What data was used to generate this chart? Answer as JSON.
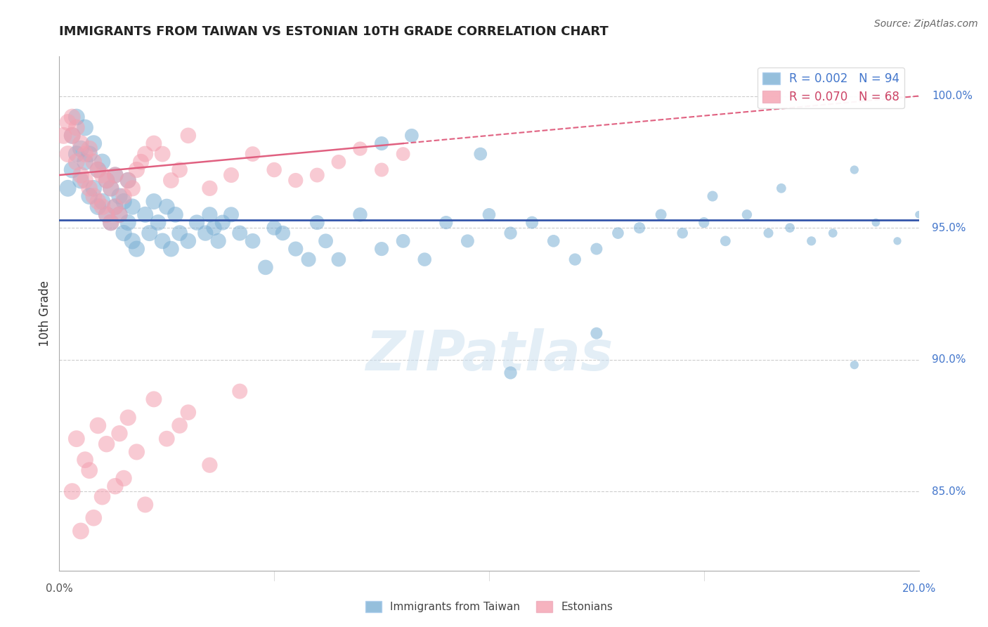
{
  "title": "IMMIGRANTS FROM TAIWAN VS ESTONIAN 10TH GRADE CORRELATION CHART",
  "source": "Source: ZipAtlas.com",
  "ylabel": "10th Grade",
  "x_min": 0.0,
  "x_max": 20.0,
  "y_min": 82.0,
  "y_max": 101.5,
  "y_ticks": [
    85.0,
    90.0,
    95.0,
    100.0
  ],
  "y_tick_labels": [
    "85.0%",
    "90.0%",
    "95.0%",
    "100.0%"
  ],
  "blue_color": "#7bafd4",
  "pink_color": "#f4a0b0",
  "blue_line_color": "#3355aa",
  "pink_line_color": "#e06080",
  "R_blue": 0.002,
  "N_blue": 94,
  "R_pink": 0.07,
  "N_pink": 68,
  "watermark": "ZIPatlas",
  "blue_scatter_x": [
    0.2,
    0.3,
    0.3,
    0.4,
    0.4,
    0.5,
    0.5,
    0.6,
    0.6,
    0.7,
    0.7,
    0.8,
    0.8,
    0.9,
    0.9,
    1.0,
    1.0,
    1.1,
    1.1,
    1.2,
    1.2,
    1.3,
    1.3,
    1.4,
    1.4,
    1.5,
    1.5,
    1.6,
    1.6,
    1.7,
    1.7,
    1.8,
    2.0,
    2.1,
    2.2,
    2.3,
    2.4,
    2.5,
    2.6,
    2.7,
    2.8,
    3.0,
    3.2,
    3.4,
    3.5,
    3.6,
    3.7,
    3.8,
    4.0,
    4.2,
    4.5,
    4.8,
    5.0,
    5.2,
    5.5,
    5.8,
    6.0,
    6.2,
    6.5,
    7.0,
    7.5,
    8.0,
    8.5,
    9.0,
    9.5,
    10.0,
    10.5,
    11.0,
    11.5,
    12.0,
    12.5,
    13.0,
    13.5,
    14.0,
    14.5,
    15.0,
    15.5,
    16.0,
    16.5,
    17.0,
    17.5,
    18.0,
    18.5,
    19.0,
    19.5,
    20.0,
    7.5,
    8.2,
    9.8,
    15.2,
    16.8,
    18.5,
    10.5,
    12.5
  ],
  "blue_scatter_y": [
    96.5,
    97.2,
    98.5,
    97.8,
    99.2,
    98.0,
    96.8,
    97.5,
    98.8,
    96.2,
    97.8,
    96.5,
    98.2,
    95.8,
    97.2,
    96.0,
    97.5,
    95.5,
    96.8,
    95.2,
    96.5,
    95.8,
    97.0,
    95.5,
    96.2,
    94.8,
    96.0,
    95.2,
    96.8,
    94.5,
    95.8,
    94.2,
    95.5,
    94.8,
    96.0,
    95.2,
    94.5,
    95.8,
    94.2,
    95.5,
    94.8,
    94.5,
    95.2,
    94.8,
    95.5,
    95.0,
    94.5,
    95.2,
    95.5,
    94.8,
    94.5,
    93.5,
    95.0,
    94.8,
    94.2,
    93.8,
    95.2,
    94.5,
    93.8,
    95.5,
    94.2,
    94.5,
    93.8,
    95.2,
    94.5,
    95.5,
    94.8,
    95.2,
    94.5,
    93.8,
    94.2,
    94.8,
    95.0,
    95.5,
    94.8,
    95.2,
    94.5,
    95.5,
    94.8,
    95.0,
    94.5,
    94.8,
    89.8,
    95.2,
    94.5,
    95.5,
    98.2,
    98.5,
    97.8,
    96.2,
    96.5,
    97.2,
    89.5,
    91.0
  ],
  "pink_scatter_x": [
    0.1,
    0.2,
    0.2,
    0.3,
    0.3,
    0.4,
    0.4,
    0.5,
    0.5,
    0.6,
    0.6,
    0.7,
    0.7,
    0.8,
    0.8,
    0.9,
    0.9,
    1.0,
    1.0,
    1.1,
    1.1,
    1.2,
    1.2,
    1.3,
    1.3,
    1.4,
    1.5,
    1.6,
    1.7,
    1.8,
    1.9,
    2.0,
    2.2,
    2.4,
    2.6,
    2.8,
    3.0,
    3.5,
    4.0,
    4.5,
    5.0,
    5.5,
    6.0,
    6.5,
    7.0,
    7.5,
    8.0,
    1.8,
    2.2,
    3.5,
    2.5,
    3.0,
    1.5,
    2.0,
    1.0,
    0.8,
    0.5,
    0.3,
    0.6,
    0.7,
    0.9,
    1.1,
    1.3,
    4.2,
    0.4,
    2.8,
    1.4,
    1.6
  ],
  "pink_scatter_y": [
    98.5,
    99.0,
    97.8,
    98.5,
    99.2,
    97.5,
    98.8,
    97.0,
    98.2,
    96.8,
    97.8,
    96.5,
    98.0,
    96.2,
    97.5,
    96.0,
    97.2,
    95.8,
    97.0,
    95.5,
    96.8,
    95.2,
    96.5,
    95.8,
    97.0,
    95.5,
    96.2,
    96.8,
    96.5,
    97.2,
    97.5,
    97.8,
    98.2,
    97.8,
    96.8,
    97.2,
    98.5,
    96.5,
    97.0,
    97.8,
    97.2,
    96.8,
    97.0,
    97.5,
    98.0,
    97.2,
    97.8,
    86.5,
    88.5,
    86.0,
    87.0,
    88.0,
    85.5,
    84.5,
    84.8,
    84.0,
    83.5,
    85.0,
    86.2,
    85.8,
    87.5,
    86.8,
    85.2,
    88.8,
    87.0,
    87.5,
    87.2,
    87.8
  ],
  "pink_line_solid_end_x": 8.0,
  "pink_slope": 0.15,
  "pink_intercept": 97.0,
  "blue_line_y_val": 95.3
}
